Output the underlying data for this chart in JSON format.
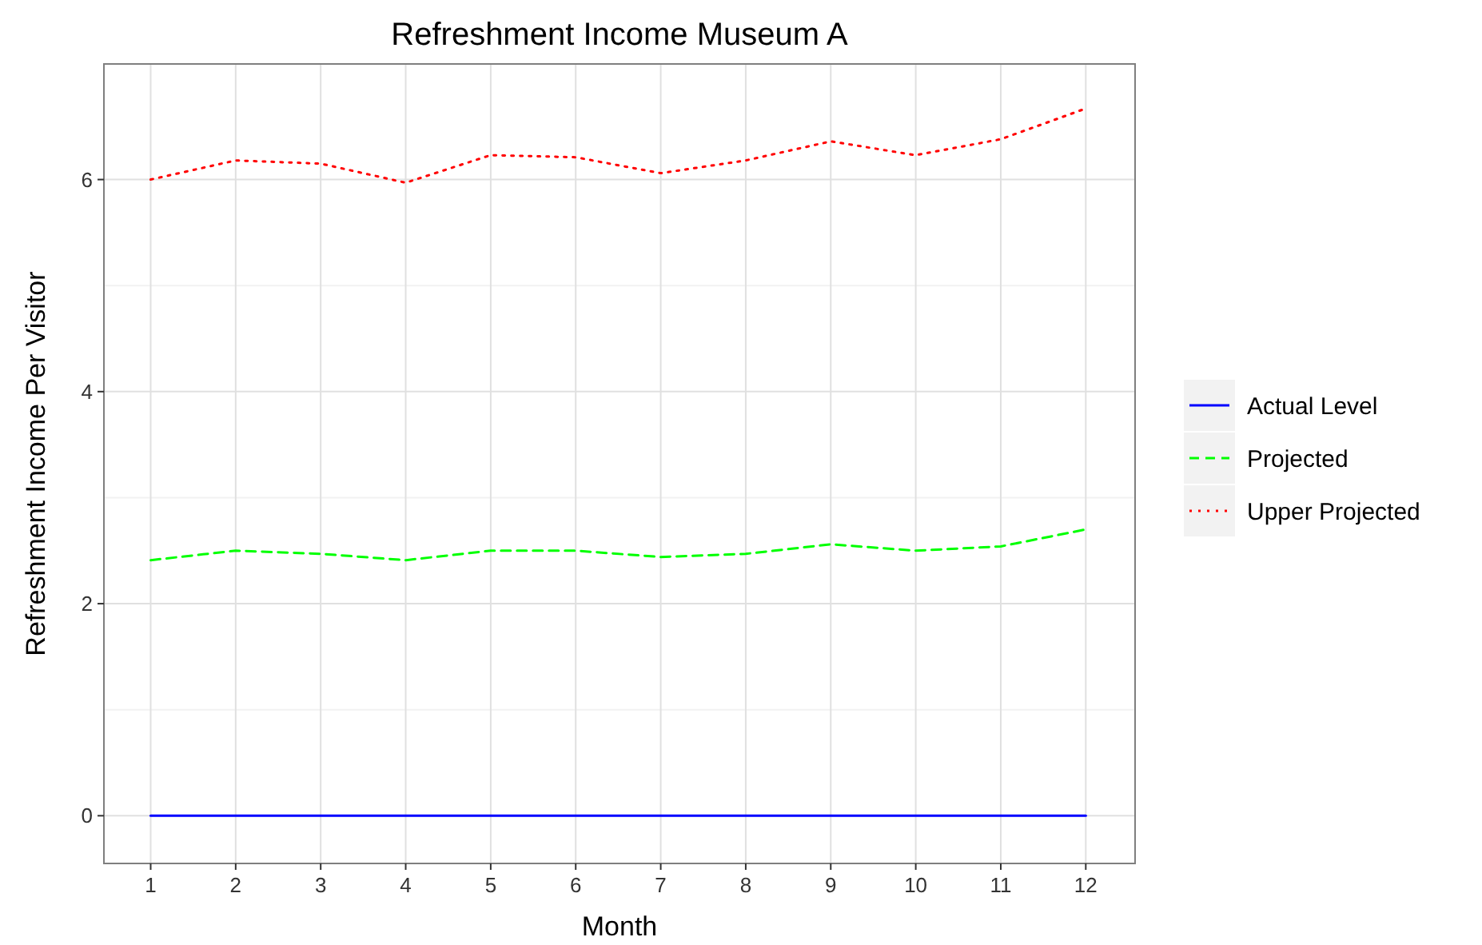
{
  "chart_data": {
    "type": "line",
    "title": "Refreshment Income Museum A",
    "xlabel": "Month",
    "ylabel": "Refreshment Income Per Visitor",
    "x": [
      1,
      2,
      3,
      4,
      5,
      6,
      7,
      8,
      9,
      10,
      11,
      12
    ],
    "series": [
      {
        "name": "Actual Level",
        "color": "#0000ff",
        "line_style": "solid",
        "values": [
          0,
          0,
          0,
          0,
          0,
          0,
          0,
          0,
          0,
          0,
          0,
          0
        ]
      },
      {
        "name": "Projected",
        "color": "#00ff00",
        "line_style": "dashed",
        "values": [
          2.41,
          2.5,
          2.47,
          2.41,
          2.5,
          2.5,
          2.44,
          2.47,
          2.56,
          2.5,
          2.54,
          2.7
        ]
      },
      {
        "name": "Upper Projected",
        "color": "#ff0000",
        "line_style": "dotted",
        "values": [
          6.0,
          6.18,
          6.15,
          5.97,
          6.23,
          6.21,
          6.06,
          6.18,
          6.36,
          6.23,
          6.38,
          6.67
        ]
      }
    ],
    "xlim": [
      0.45,
      12.58
    ],
    "xticks": [
      1,
      2,
      3,
      4,
      5,
      6,
      7,
      8,
      9,
      10,
      11,
      12
    ],
    "ylim": [
      -0.45,
      7.09
    ],
    "yticks": [
      0,
      2,
      4,
      6
    ],
    "grid": true,
    "legend": "right",
    "marker": "none"
  }
}
